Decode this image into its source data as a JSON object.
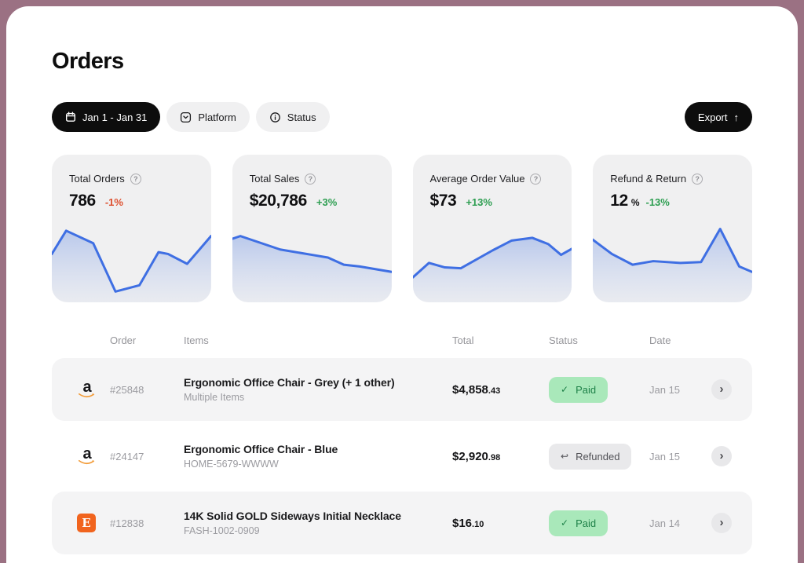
{
  "page": {
    "title": "Orders"
  },
  "toolbar": {
    "date_range_label": "Jan 1 - Jan 31",
    "platform_label": "Platform",
    "status_label": "Status",
    "export_label": "Export"
  },
  "icons": {
    "help": "?",
    "export_arrow": "↑",
    "check": "✓",
    "return_arrow": "↩",
    "chevron_right": "›"
  },
  "platforms": {
    "amazon_letter": "a",
    "etsy_letter": "E"
  },
  "colors": {
    "outer_background": "#9b7183",
    "accent_blue": "#3f6fe3",
    "spark_fill_top": "rgba(96,136,226,0.38)",
    "spark_fill_bottom": "rgba(150,176,236,0.08)",
    "negative_red": "#dd4f2e",
    "positive_green": "#2d9e51",
    "paid_bg": "#a9e8ba",
    "paid_text": "#1e8148",
    "refunded_bg": "#e9e9eb",
    "refunded_text": "#515156"
  },
  "stats": [
    {
      "label": "Total Orders",
      "value": "786",
      "unit": "",
      "delta": "-1%",
      "delta_color": "#dd4f2e",
      "spark": [
        [
          0,
          0.46
        ],
        [
          0.09,
          0.2
        ],
        [
          0.26,
          0.34
        ],
        [
          0.4,
          0.88
        ],
        [
          0.55,
          0.81
        ],
        [
          0.67,
          0.44
        ],
        [
          0.73,
          0.46
        ],
        [
          0.85,
          0.57
        ],
        [
          1,
          0.26
        ]
      ]
    },
    {
      "label": "Total Sales",
      "value": "$20,786",
      "unit": "",
      "delta": "+3%",
      "delta_color": "#2d9e51",
      "spark": [
        [
          0,
          0.29
        ],
        [
          0.05,
          0.26
        ],
        [
          0.3,
          0.41
        ],
        [
          0.5,
          0.47
        ],
        [
          0.6,
          0.5
        ],
        [
          0.7,
          0.58
        ],
        [
          0.8,
          0.6
        ],
        [
          1,
          0.66
        ]
      ]
    },
    {
      "label": "Average Order Value",
      "value": "$73",
      "unit": "",
      "delta": "+13%",
      "delta_color": "#2d9e51",
      "spark": [
        [
          0,
          0.72
        ],
        [
          0.1,
          0.56
        ],
        [
          0.2,
          0.61
        ],
        [
          0.3,
          0.62
        ],
        [
          0.5,
          0.42
        ],
        [
          0.62,
          0.31
        ],
        [
          0.75,
          0.28
        ],
        [
          0.85,
          0.35
        ],
        [
          0.93,
          0.47
        ],
        [
          1,
          0.4
        ]
      ]
    },
    {
      "label": "Refund & Return",
      "value": "12",
      "unit": "%",
      "delta": "-13%",
      "delta_color": "#2d9e51",
      "spark": [
        [
          0,
          0.3
        ],
        [
          0.12,
          0.46
        ],
        [
          0.25,
          0.58
        ],
        [
          0.38,
          0.54
        ],
        [
          0.55,
          0.56
        ],
        [
          0.68,
          0.55
        ],
        [
          0.8,
          0.18
        ],
        [
          0.92,
          0.6
        ],
        [
          1,
          0.66
        ]
      ]
    }
  ],
  "table": {
    "headers": {
      "order": "Order",
      "items": "Items",
      "total": "Total",
      "status": "Status",
      "date": "Date"
    },
    "rows": [
      {
        "platform": "amazon",
        "order": "#25848",
        "title": "Ergonomic Office Chair - Grey (+ 1 other)",
        "subtitle": "Multiple Items",
        "total_main": "$4,858",
        "total_cents": ".43",
        "status": "Paid",
        "status_type": "paid",
        "status_glyph": "✓",
        "date": "Jan 15"
      },
      {
        "platform": "amazon",
        "order": "#24147",
        "title": "Ergonomic Office Chair - Blue",
        "subtitle": "HOME-5679-WWWW",
        "total_main": "$2,920",
        "total_cents": ".98",
        "status": "Refunded",
        "status_type": "refunded",
        "status_glyph": "↩",
        "date": "Jan 15"
      },
      {
        "platform": "etsy",
        "order": "#12838",
        "title": "14K Solid GOLD Sideways Initial Necklace",
        "subtitle": "FASH-1002-0909",
        "total_main": "$16",
        "total_cents": ".10",
        "status": "Paid",
        "status_type": "paid",
        "status_glyph": "✓",
        "date": "Jan 14"
      }
    ]
  }
}
